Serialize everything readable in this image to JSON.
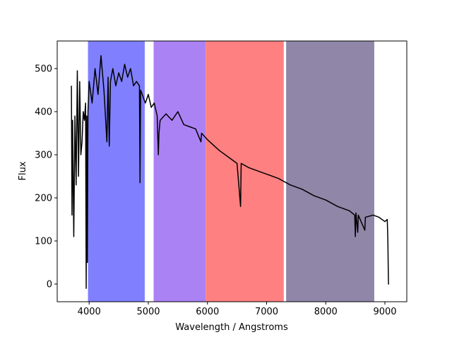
{
  "chart_data": {
    "type": "line",
    "xlabel": "Wavelength / Angstroms",
    "ylabel": "Flux",
    "xlim": [
      3460,
      9370
    ],
    "ylim": [
      -41,
      564
    ],
    "xticks": [
      4000,
      5000,
      6000,
      7000,
      8000,
      9000
    ],
    "yticks": [
      0,
      100,
      200,
      300,
      400,
      500
    ],
    "spans": [
      {
        "start": 3980,
        "end": 4940,
        "color": "#8080ff"
      },
      {
        "start": 5090,
        "end": 5970,
        "color": "#ab82f4"
      },
      {
        "start": 5970,
        "end": 7290,
        "color": "#ff8080"
      },
      {
        "start": 7330,
        "end": 8820,
        "color": "#8f86a8"
      }
    ],
    "x": [
      3700,
      3710,
      3720,
      3740,
      3760,
      3780,
      3800,
      3820,
      3840,
      3860,
      3880,
      3900,
      3920,
      3940,
      3950,
      3960,
      3970,
      3980,
      4000,
      4050,
      4100,
      4150,
      4200,
      4250,
      4300,
      4320,
      4340,
      4360,
      4400,
      4450,
      4500,
      4550,
      4600,
      4650,
      4700,
      4750,
      4800,
      4850,
      4860,
      4870,
      4950,
      5000,
      5050,
      5100,
      5150,
      5170,
      5180,
      5200,
      5300,
      5400,
      5500,
      5600,
      5700,
      5800,
      5890,
      5900,
      6000,
      6200,
      6400,
      6500,
      6560,
      6570,
      6700,
      6900,
      7000,
      7200,
      7400,
      7600,
      7800,
      8000,
      8200,
      8400,
      8490,
      8500,
      8510,
      8540,
      8550,
      8660,
      8670,
      8800,
      8900,
      9000,
      9040,
      9050,
      9060,
      9070
    ],
    "series": [
      {
        "color": "#000000",
        "values": [
          460,
          160,
          380,
          110,
          390,
          230,
          495,
          250,
          470,
          300,
          330,
          400,
          380,
          420,
          -10,
          390,
          50,
          400,
          470,
          420,
          500,
          440,
          530,
          450,
          330,
          480,
          320,
          470,
          500,
          460,
          490,
          470,
          510,
          480,
          500,
          460,
          470,
          460,
          235,
          450,
          420,
          440,
          410,
          420,
          390,
          300,
          350,
          380,
          395,
          380,
          400,
          370,
          365,
          360,
          330,
          350,
          335,
          310,
          290,
          280,
          180,
          280,
          270,
          260,
          255,
          245,
          230,
          220,
          205,
          195,
          180,
          170,
          160,
          110,
          165,
          120,
          160,
          125,
          155,
          160,
          155,
          145,
          150,
          100,
          0,
          0
        ]
      }
    ]
  }
}
